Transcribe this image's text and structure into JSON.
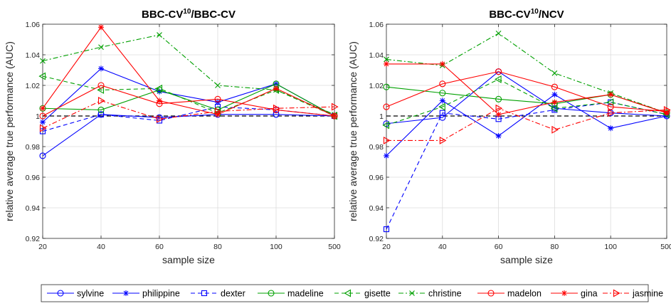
{
  "figure": {
    "x_tick_labels": [
      "20",
      "40",
      "60",
      "80",
      "100",
      "500"
    ]
  },
  "legend_position": "bottom",
  "series_style": [
    {
      "name": "sylvine",
      "color": "#0000ff",
      "dash": "solid",
      "marker": "circle"
    },
    {
      "name": "philippine",
      "color": "#0000ff",
      "dash": "solid",
      "marker": "asterisk"
    },
    {
      "name": "dexter",
      "color": "#0000ff",
      "dash": "dashed",
      "marker": "square"
    },
    {
      "name": "madeline",
      "color": "#00a000",
      "dash": "solid",
      "marker": "circle"
    },
    {
      "name": "gisette",
      "color": "#00a000",
      "dash": "dashed",
      "marker": "triangle-left"
    },
    {
      "name": "christine",
      "color": "#00a000",
      "dash": "dashdot",
      "marker": "x"
    },
    {
      "name": "madelon",
      "color": "#ff0000",
      "dash": "solid",
      "marker": "circle"
    },
    {
      "name": "gina",
      "color": "#ff0000",
      "dash": "solid",
      "marker": "asterisk"
    },
    {
      "name": "jasmine",
      "color": "#ff0000",
      "dash": "dashdot",
      "marker": "triangle-right"
    }
  ],
  "chart_data": [
    {
      "type": "line",
      "title_main": "BBC-CV",
      "title_sup": "10",
      "title_rest": "/BBC-CV",
      "xlabel": "sample size",
      "ylabel": "relative average true performance (AUC)",
      "categories": [
        "20",
        "40",
        "60",
        "80",
        "100",
        "500"
      ],
      "ylim": [
        0.92,
        1.06
      ],
      "yticks": [
        "0.92",
        "0.94",
        "0.96",
        "0.98",
        "1",
        "1.02",
        "1.04",
        "1.06"
      ],
      "grid": true,
      "reference_line": 1,
      "series": [
        {
          "name": "sylvine",
          "values": [
            0.974,
            1.001,
            0.999,
            1.001,
            1.001,
            1.0
          ]
        },
        {
          "name": "philippine",
          "values": [
            0.996,
            1.031,
            1.016,
            1.009,
            1.021,
            1.0
          ]
        },
        {
          "name": "dexter",
          "values": [
            0.99,
            1.001,
            0.997,
            1.006,
            1.004,
            1.0
          ]
        },
        {
          "name": "madeline",
          "values": [
            1.005,
            1.004,
            1.017,
            1.004,
            1.021,
            1.0
          ]
        },
        {
          "name": "gisette",
          "values": [
            1.026,
            1.017,
            1.018,
            1.002,
            1.017,
            1.0
          ]
        },
        {
          "name": "christine",
          "values": [
            1.036,
            1.045,
            1.053,
            1.02,
            1.017,
            1.001
          ]
        },
        {
          "name": "madelon",
          "values": [
            1.0,
            1.02,
            1.008,
            1.011,
            1.004,
            1.0
          ]
        },
        {
          "name": "gina",
          "values": [
            1.005,
            1.058,
            1.01,
            1.001,
            1.018,
            1.0
          ]
        },
        {
          "name": "jasmine",
          "values": [
            0.992,
            1.01,
            0.998,
            1.003,
            1.005,
            1.006
          ]
        }
      ]
    },
    {
      "type": "line",
      "title_main": "BBC-CV",
      "title_sup": "10",
      "title_rest": "/NCV",
      "xlabel": "sample size",
      "ylabel": "relative average true performance (AUC)",
      "categories": [
        "20",
        "40",
        "60",
        "80",
        "100",
        "500"
      ],
      "ylim": [
        0.92,
        1.06
      ],
      "yticks": [
        "0.92",
        "0.94",
        "0.96",
        "0.98",
        "1",
        "1.02",
        "1.04",
        "1.06"
      ],
      "grid": true,
      "reference_line": 1,
      "series": [
        {
          "name": "sylvine",
          "values": [
            0.995,
            0.999,
            1.029,
            1.005,
            1.002,
            1.0
          ]
        },
        {
          "name": "philippine",
          "values": [
            0.974,
            1.01,
            0.987,
            1.014,
            0.992,
            1.0
          ]
        },
        {
          "name": "dexter",
          "values": [
            0.926,
            1.002,
            0.998,
            1.004,
            1.009,
            1.001
          ]
        },
        {
          "name": "madeline",
          "values": [
            1.019,
            1.015,
            1.011,
            1.008,
            1.014,
            1.002
          ]
        },
        {
          "name": "gisette",
          "values": [
            0.994,
            1.006,
            1.024,
            1.005,
            1.009,
            1.001
          ]
        },
        {
          "name": "christine",
          "values": [
            1.037,
            1.033,
            1.054,
            1.028,
            1.015,
            1.002
          ]
        },
        {
          "name": "madelon",
          "values": [
            1.006,
            1.021,
            1.029,
            1.019,
            1.006,
            1.003
          ]
        },
        {
          "name": "gina",
          "values": [
            1.034,
            1.034,
            1.001,
            1.009,
            1.014,
            1.002
          ]
        },
        {
          "name": "jasmine",
          "values": [
            0.984,
            0.984,
            1.005,
            0.991,
            1.002,
            1.004
          ]
        }
      ]
    }
  ]
}
